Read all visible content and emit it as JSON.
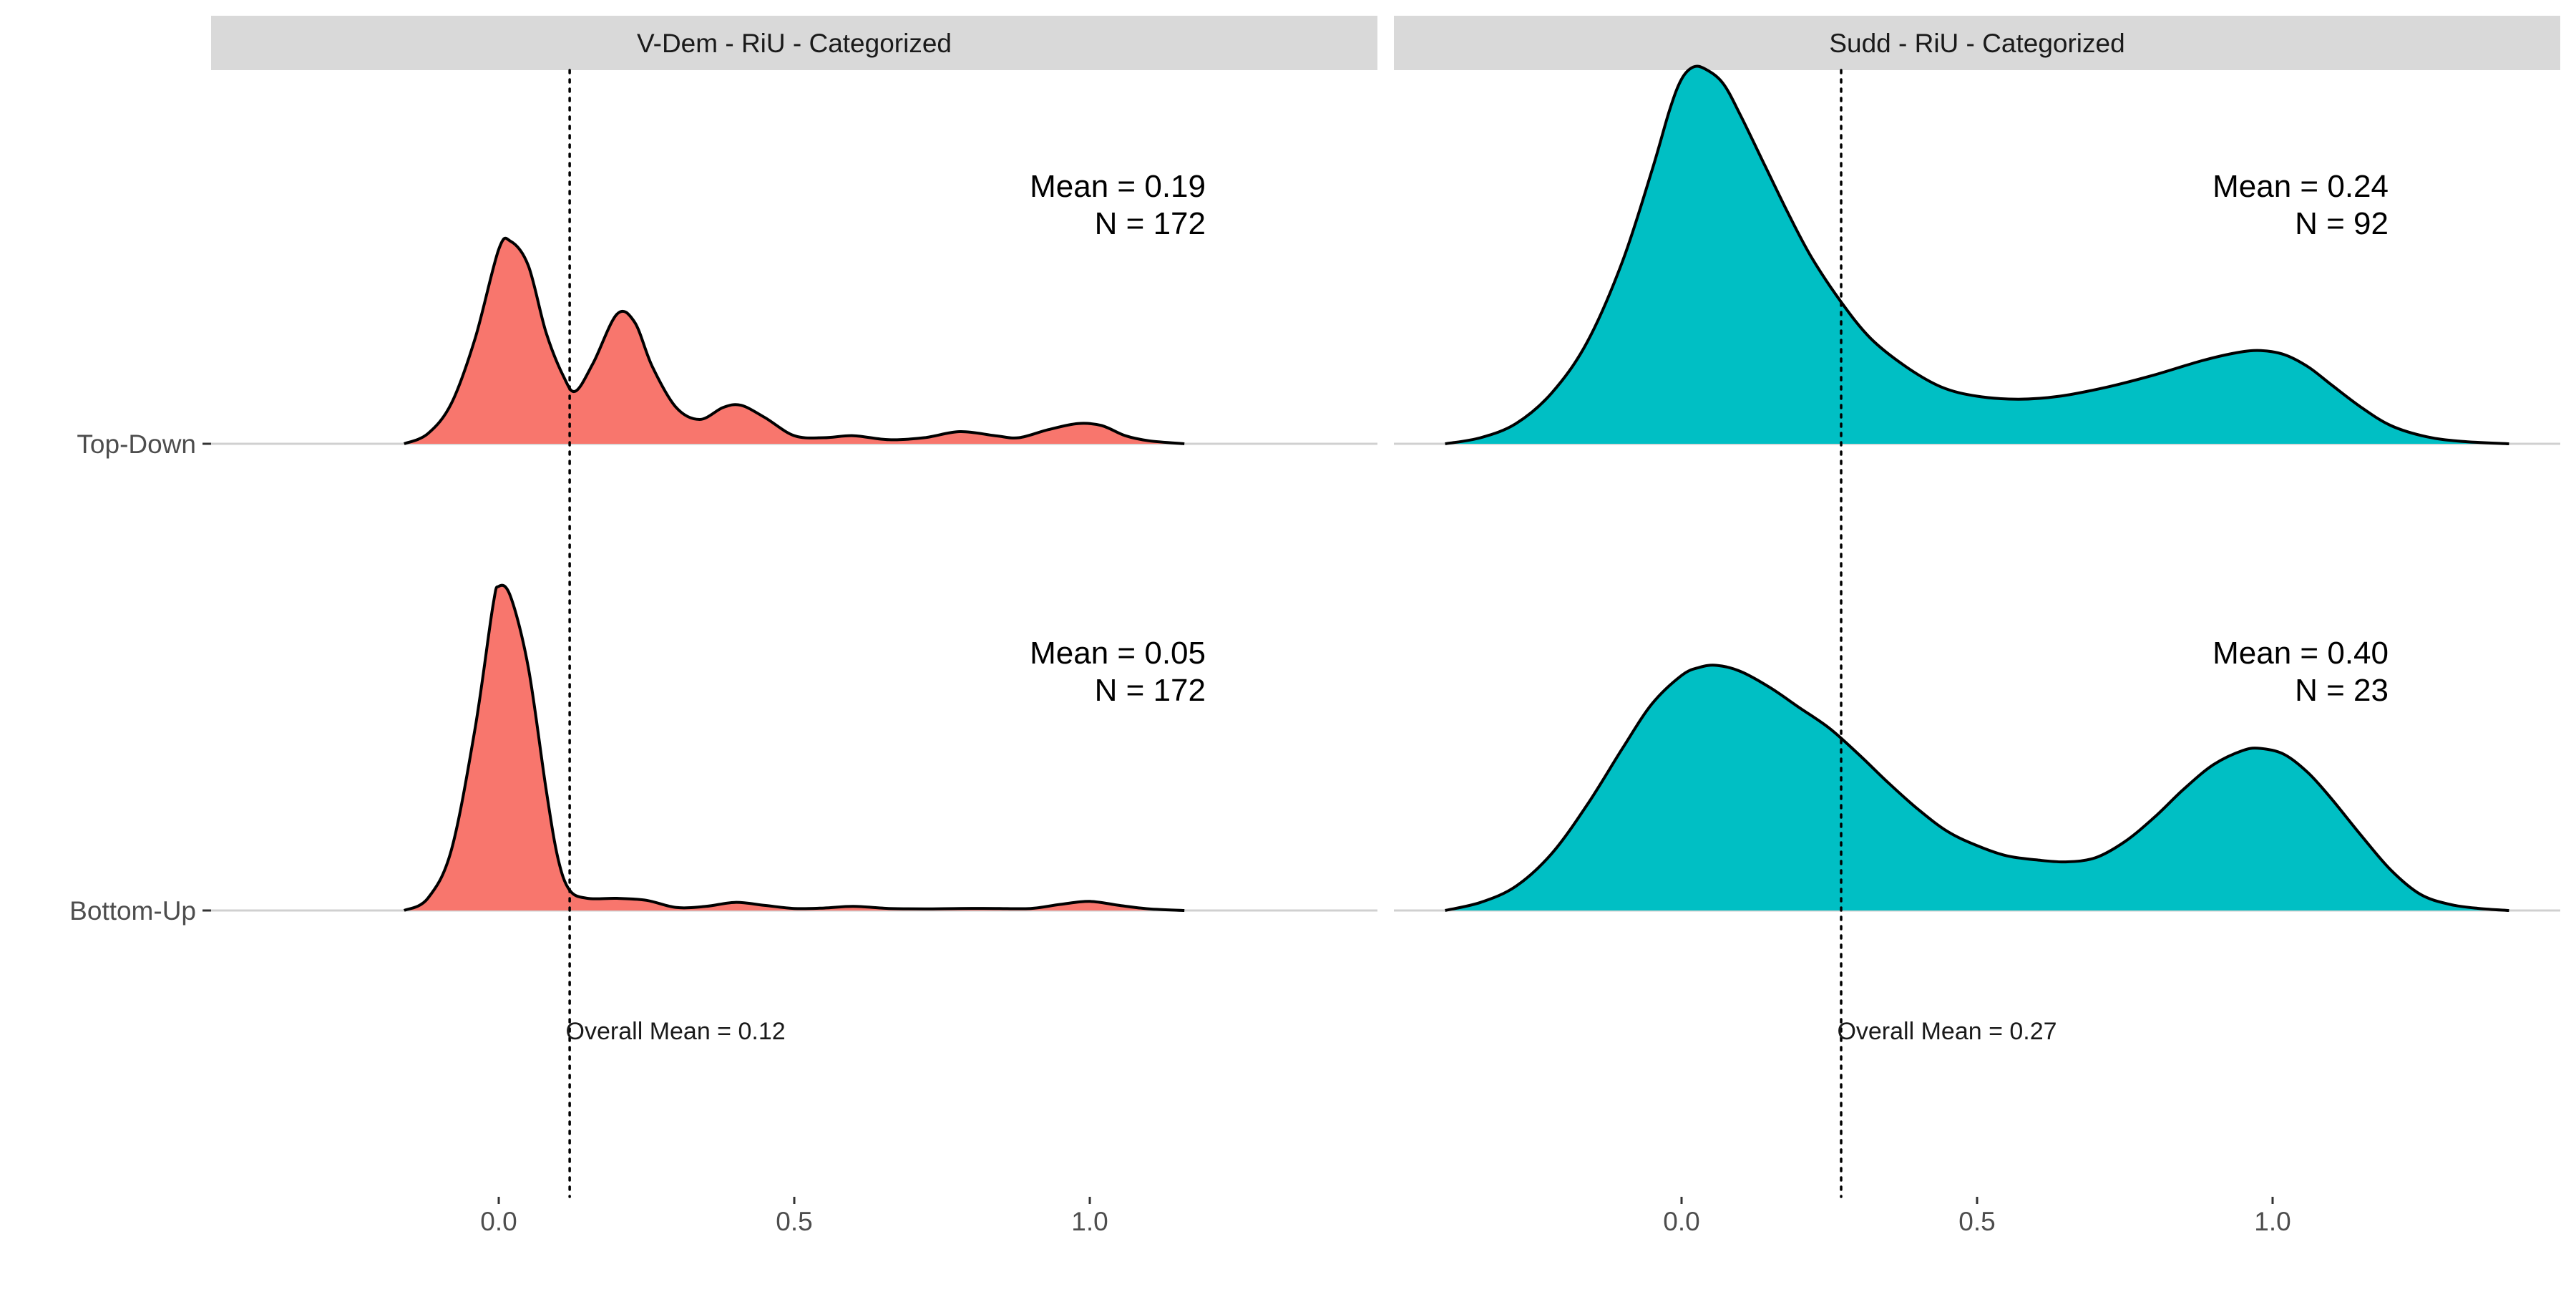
{
  "chart_data": {
    "type": "ridgeline-density",
    "y_categories": [
      "Top-Down",
      "Bottom-Up"
    ],
    "x_ticks": [
      0.0,
      0.5,
      1.0
    ],
    "x_tick_labels": [
      "0.0",
      "0.5",
      "1.0"
    ],
    "xlim": [
      -0.5,
      1.5
    ],
    "grid": false,
    "panels": [
      {
        "strip_label": "V-Dem - RiU - Categorized",
        "fill": "#F8766D",
        "overall_mean": 0.12,
        "overall_label": "Overall Mean = 0.12",
        "series": [
          {
            "category": "Top-Down",
            "stat_mean": "Mean = 0.19",
            "stat_n": "N = 172",
            "points": [
              [
                -0.16,
                0.0
              ],
              [
                -0.12,
                0.05
              ],
              [
                -0.08,
                0.2
              ],
              [
                -0.04,
                0.52
              ],
              [
                0.0,
                0.96
              ],
              [
                0.02,
                1.0
              ],
              [
                0.05,
                0.88
              ],
              [
                0.08,
                0.55
              ],
              [
                0.11,
                0.33
              ],
              [
                0.13,
                0.26
              ],
              [
                0.16,
                0.4
              ],
              [
                0.2,
                0.64
              ],
              [
                0.23,
                0.6
              ],
              [
                0.26,
                0.38
              ],
              [
                0.3,
                0.18
              ],
              [
                0.34,
                0.12
              ],
              [
                0.38,
                0.18
              ],
              [
                0.41,
                0.19
              ],
              [
                0.45,
                0.13
              ],
              [
                0.5,
                0.04
              ],
              [
                0.55,
                0.03
              ],
              [
                0.6,
                0.04
              ],
              [
                0.66,
                0.02
              ],
              [
                0.72,
                0.03
              ],
              [
                0.78,
                0.06
              ],
              [
                0.84,
                0.04
              ],
              [
                0.88,
                0.03
              ],
              [
                0.93,
                0.07
              ],
              [
                0.98,
                0.1
              ],
              [
                1.02,
                0.09
              ],
              [
                1.06,
                0.04
              ],
              [
                1.1,
                0.015
              ],
              [
                1.16,
                0.0
              ]
            ]
          },
          {
            "category": "Bottom-Up",
            "stat_mean": "Mean = 0.05",
            "stat_n": "N = 172",
            "points": [
              [
                -0.16,
                0.0
              ],
              [
                -0.12,
                0.06
              ],
              [
                -0.08,
                0.3
              ],
              [
                -0.04,
                0.9
              ],
              [
                -0.01,
                1.5
              ],
              [
                0.0,
                1.6
              ],
              [
                0.02,
                1.55
              ],
              [
                0.05,
                1.2
              ],
              [
                0.08,
                0.6
              ],
              [
                0.1,
                0.26
              ],
              [
                0.12,
                0.1
              ],
              [
                0.15,
                0.06
              ],
              [
                0.2,
                0.06
              ],
              [
                0.25,
                0.05
              ],
              [
                0.3,
                0.015
              ],
              [
                0.35,
                0.02
              ],
              [
                0.4,
                0.04
              ],
              [
                0.45,
                0.025
              ],
              [
                0.5,
                0.01
              ],
              [
                0.55,
                0.012
              ],
              [
                0.6,
                0.02
              ],
              [
                0.66,
                0.01
              ],
              [
                0.72,
                0.008
              ],
              [
                0.78,
                0.01
              ],
              [
                0.84,
                0.01
              ],
              [
                0.9,
                0.01
              ],
              [
                0.95,
                0.03
              ],
              [
                1.0,
                0.045
              ],
              [
                1.05,
                0.025
              ],
              [
                1.1,
                0.008
              ],
              [
                1.16,
                0.0
              ]
            ]
          }
        ]
      },
      {
        "strip_label": "Sudd - RiU - Categorized",
        "fill": "#00BFC4",
        "overall_mean": 0.27,
        "overall_label": "Overall Mean = 0.27",
        "series": [
          {
            "category": "Top-Down",
            "stat_mean": "Mean = 0.24",
            "stat_n": "N = 92",
            "points": [
              [
                -0.4,
                0.0
              ],
              [
                -0.34,
                0.03
              ],
              [
                -0.28,
                0.1
              ],
              [
                -0.22,
                0.25
              ],
              [
                -0.16,
                0.5
              ],
              [
                -0.1,
                0.9
              ],
              [
                -0.05,
                1.35
              ],
              [
                -0.02,
                1.65
              ],
              [
                0.0,
                1.8
              ],
              [
                0.02,
                1.86
              ],
              [
                0.04,
                1.85
              ],
              [
                0.07,
                1.78
              ],
              [
                0.1,
                1.62
              ],
              [
                0.14,
                1.38
              ],
              [
                0.18,
                1.14
              ],
              [
                0.22,
                0.92
              ],
              [
                0.27,
                0.7
              ],
              [
                0.32,
                0.52
              ],
              [
                0.38,
                0.38
              ],
              [
                0.44,
                0.28
              ],
              [
                0.5,
                0.235
              ],
              [
                0.57,
                0.22
              ],
              [
                0.64,
                0.235
              ],
              [
                0.72,
                0.28
              ],
              [
                0.8,
                0.34
              ],
              [
                0.88,
                0.41
              ],
              [
                0.94,
                0.45
              ],
              [
                0.98,
                0.46
              ],
              [
                1.02,
                0.44
              ],
              [
                1.06,
                0.38
              ],
              [
                1.1,
                0.29
              ],
              [
                1.15,
                0.18
              ],
              [
                1.2,
                0.09
              ],
              [
                1.26,
                0.035
              ],
              [
                1.32,
                0.012
              ],
              [
                1.4,
                0.0
              ]
            ]
          },
          {
            "category": "Bottom-Up",
            "stat_mean": "Mean = 0.40",
            "stat_n": "N = 23",
            "points": [
              [
                -0.4,
                0.0
              ],
              [
                -0.34,
                0.04
              ],
              [
                -0.28,
                0.12
              ],
              [
                -0.22,
                0.28
              ],
              [
                -0.16,
                0.52
              ],
              [
                -0.1,
                0.8
              ],
              [
                -0.05,
                1.02
              ],
              [
                0.0,
                1.16
              ],
              [
                0.03,
                1.2
              ],
              [
                0.06,
                1.21
              ],
              [
                0.1,
                1.18
              ],
              [
                0.15,
                1.1
              ],
              [
                0.2,
                1.0
              ],
              [
                0.25,
                0.9
              ],
              [
                0.3,
                0.77
              ],
              [
                0.35,
                0.63
              ],
              [
                0.4,
                0.5
              ],
              [
                0.45,
                0.39
              ],
              [
                0.5,
                0.32
              ],
              [
                0.55,
                0.27
              ],
              [
                0.6,
                0.25
              ],
              [
                0.65,
                0.24
              ],
              [
                0.7,
                0.26
              ],
              [
                0.75,
                0.34
              ],
              [
                0.8,
                0.46
              ],
              [
                0.85,
                0.6
              ],
              [
                0.9,
                0.72
              ],
              [
                0.95,
                0.79
              ],
              [
                0.98,
                0.8
              ],
              [
                1.02,
                0.77
              ],
              [
                1.06,
                0.68
              ],
              [
                1.1,
                0.55
              ],
              [
                1.15,
                0.37
              ],
              [
                1.2,
                0.2
              ],
              [
                1.25,
                0.08
              ],
              [
                1.3,
                0.03
              ],
              [
                1.35,
                0.01
              ],
              [
                1.4,
                0.0
              ]
            ]
          }
        ]
      }
    ]
  }
}
